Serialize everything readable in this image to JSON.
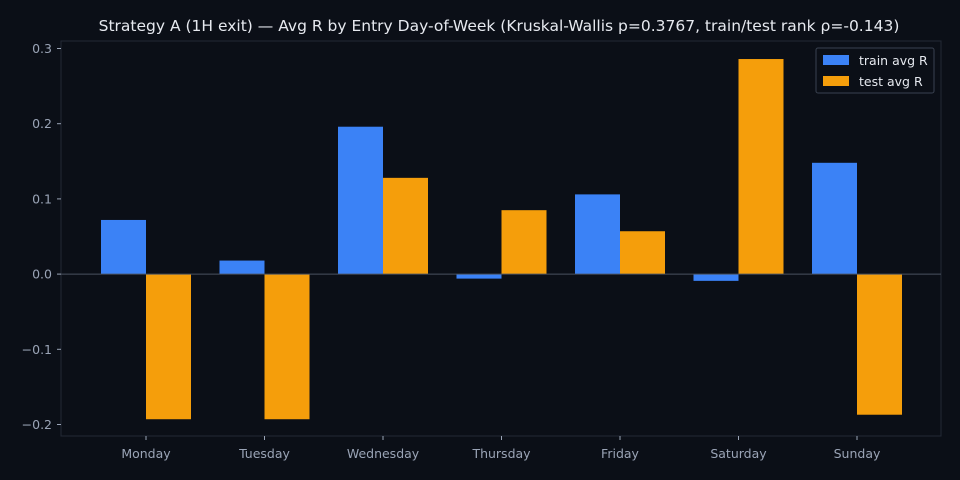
{
  "colors": {
    "background": "#0b0f17",
    "plot_frame": "#232a36",
    "zero_line": "#4a5260",
    "tick_text": "#9aa4b6",
    "title_text": "#e6e9ef",
    "train": "#3b82f6",
    "test": "#f59e0b"
  },
  "chart_data": {
    "type": "bar",
    "title": "Strategy A (1H exit) — Avg R by Entry Day-of-Week (Kruskal-Wallis p=0.3767, train/test rank ρ=-0.143)",
    "xlabel": "",
    "ylabel": "",
    "categories": [
      "Monday",
      "Tuesday",
      "Wednesday",
      "Thursday",
      "Friday",
      "Saturday",
      "Sunday"
    ],
    "series": [
      {
        "name": "train avg R",
        "color": "#3b82f6",
        "values": [
          0.072,
          0.018,
          0.196,
          -0.006,
          0.106,
          -0.009,
          0.148
        ]
      },
      {
        "name": "test avg R",
        "color": "#f59e0b",
        "values": [
          -0.193,
          -0.193,
          0.128,
          0.085,
          0.057,
          0.286,
          -0.187
        ]
      }
    ],
    "ylim": [
      -0.215,
      0.31
    ],
    "yticks": [
      "−0.2",
      "−0.1",
      "0.0",
      "0.1",
      "0.2",
      "0.3"
    ],
    "ytick_values": [
      -0.2,
      -0.1,
      0.0,
      0.1,
      0.2,
      0.3
    ],
    "legend": {
      "position": "top-right"
    },
    "grid": false
  }
}
